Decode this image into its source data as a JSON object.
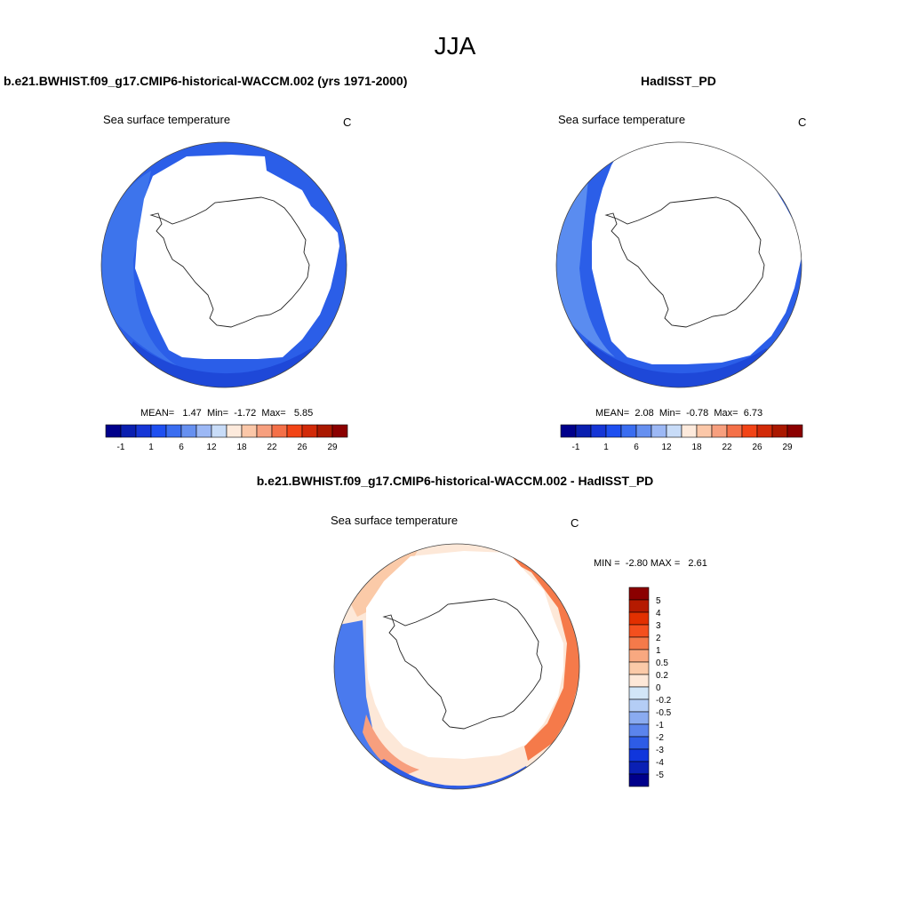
{
  "title": "JJA",
  "panels": {
    "model": {
      "title": "b.e21.BWHIST.f09_g17.CMIP6-historical-WACCM.002 (yrs 1971-2000)",
      "variable": "Sea surface temperature",
      "units": "C",
      "mean_label": "MEAN=",
      "mean_value": "1.47",
      "min_label": "Min=",
      "min_value": "-1.72",
      "max_label": "Max=",
      "max_value": "5.85"
    },
    "obs": {
      "title": "HadISST_PD",
      "variable": "Sea surface temperature",
      "units": "C",
      "mean_label": "MEAN=",
      "mean_value": "2.08",
      "min_label": "Min=",
      "min_value": "-0.78",
      "max_label": "Max=",
      "max_value": "6.73"
    },
    "diff": {
      "title": "b.e21.BWHIST.f09_g17.CMIP6-historical-WACCM.002 - HadISST_PD",
      "variable": "Sea surface temperature",
      "units": "C",
      "min_label": "MIN =",
      "min_value": "-2.80",
      "max_label": "MAX =",
      "max_value": "2.61"
    }
  },
  "sst_colorbar": {
    "colors": [
      "#00008b",
      "#0a1fb0",
      "#1636d6",
      "#1e4ff0",
      "#3a6df0",
      "#6690f0",
      "#9cb8f5",
      "#c8dcf8",
      "#fdeadc",
      "#fbc7a8",
      "#f79f7e",
      "#f47048",
      "#f24416",
      "#d22a08",
      "#aa1800",
      "#8b0000"
    ],
    "tick_labels": [
      "-1",
      "1",
      "6",
      "12",
      "18",
      "22",
      "26",
      "29"
    ]
  },
  "diff_colorbar": {
    "colors": [
      "#8b0000",
      "#b51a00",
      "#e23000",
      "#f4501e",
      "#f57a4a",
      "#f8a880",
      "#fbcaa8",
      "#fde8d8",
      "#d2e6f8",
      "#b4cdf5",
      "#8aabf0",
      "#5b84ec",
      "#2e5ce6",
      "#1036dc",
      "#0a20b4",
      "#00008b"
    ],
    "tick_labels": [
      "5",
      "4",
      "3",
      "2",
      "1",
      "0.5",
      "0.2",
      "0",
      "-0.2",
      "-0.5",
      "-1",
      "-2",
      "-3",
      "-4",
      "-5"
    ]
  }
}
